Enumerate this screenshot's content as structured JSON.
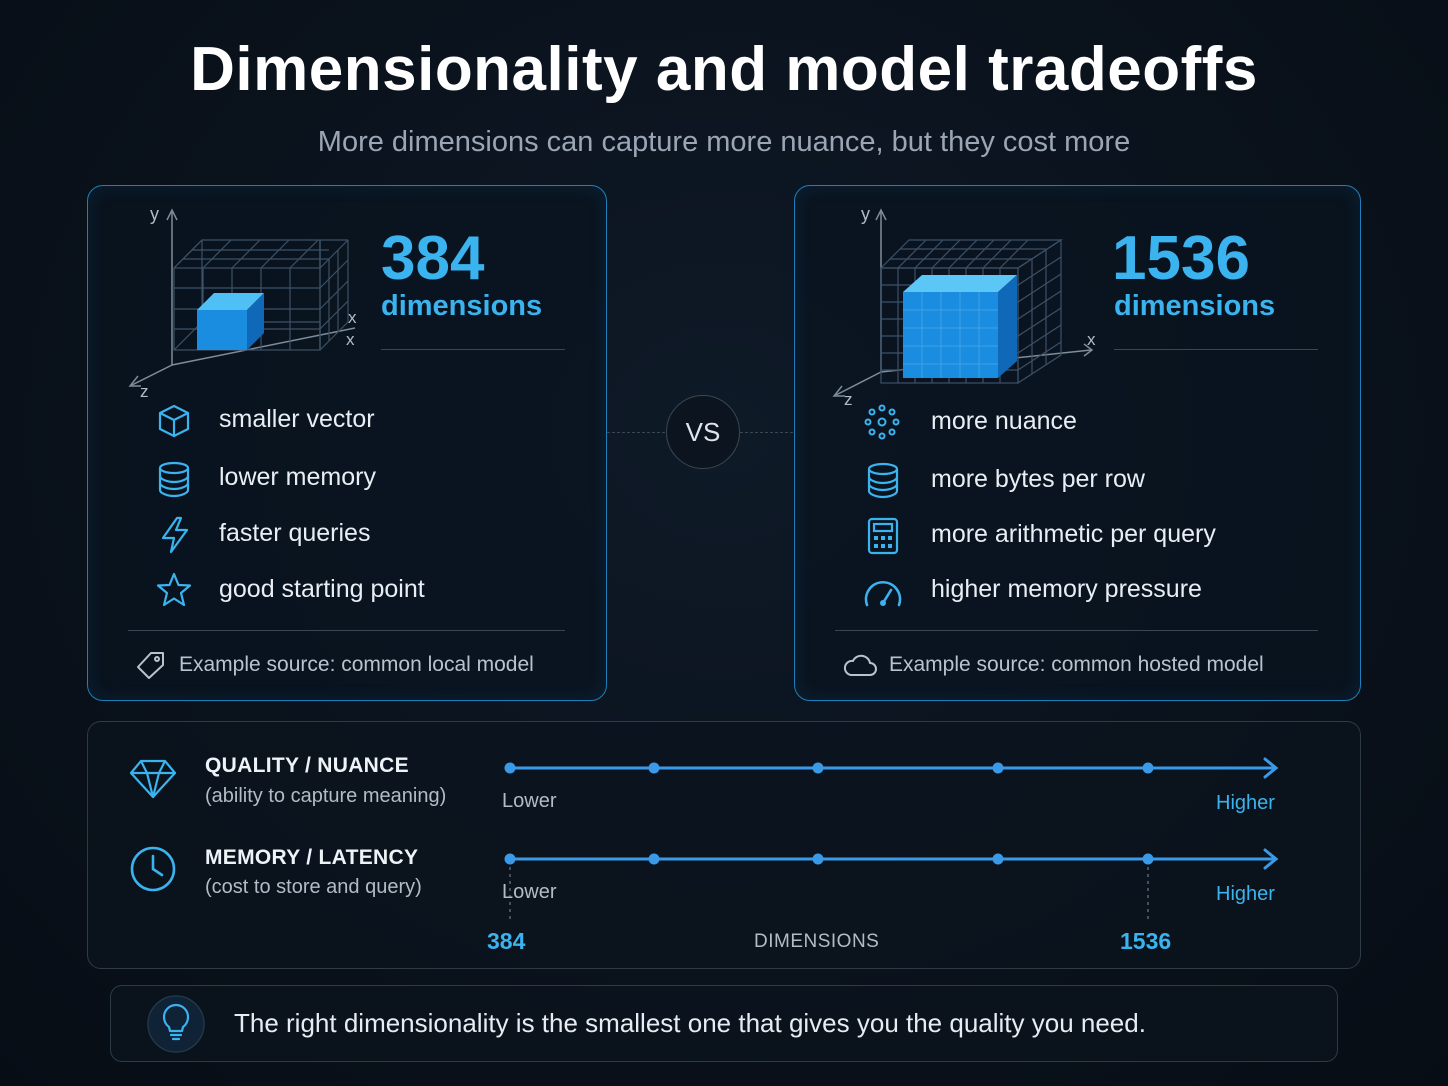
{
  "header": {
    "title": "Dimensionality and model tradeoffs",
    "subtitle": "More dimensions can capture more nuance, but they cost more"
  },
  "left_card": {
    "number": "384",
    "unit": "dimensions",
    "axes": {
      "y": "y",
      "x1": "x",
      "x2": "x",
      "z": "z"
    },
    "features": [
      {
        "icon": "cube-icon",
        "label": "smaller vector"
      },
      {
        "icon": "database-icon",
        "label": "lower memory"
      },
      {
        "icon": "lightning-icon",
        "label": "faster queries"
      },
      {
        "icon": "star-icon",
        "label": "good starting point"
      }
    ],
    "source_icon": "tag-icon",
    "source": "Example source: common local model"
  },
  "vs_label": "VS",
  "right_card": {
    "number": "1536",
    "unit": "dimensions",
    "axes": {
      "y": "y",
      "x": "x",
      "z": "z"
    },
    "features": [
      {
        "icon": "dots-icon",
        "label": "more nuance"
      },
      {
        "icon": "database-icon",
        "label": "more bytes per row"
      },
      {
        "icon": "calculator-icon",
        "label": "more arithmetic per query"
      },
      {
        "icon": "gauge-icon",
        "label": "higher memory pressure"
      }
    ],
    "source_icon": "cloud-icon",
    "source": "Example source: common hosted model"
  },
  "scales": [
    {
      "icon": "diamond-icon",
      "title": "QUALITY / NUANCE",
      "subtitle": "(ability to capture meaning)",
      "low": "Lower",
      "high": "Higher"
    },
    {
      "icon": "clock-icon",
      "title": "MEMORY / LATENCY",
      "subtitle": "(cost to store and query)",
      "low": "Lower",
      "high": "Higher"
    }
  ],
  "axis": {
    "start": "384",
    "label": "DIMENSIONS",
    "end": "1536"
  },
  "tip": {
    "icon": "lightbulb-icon",
    "text": "The right dimensionality is the smallest one that gives you the quality you need."
  },
  "colors": {
    "accent": "#3ab3ef",
    "border": "#1f7fb8",
    "background": "#0a121c"
  }
}
